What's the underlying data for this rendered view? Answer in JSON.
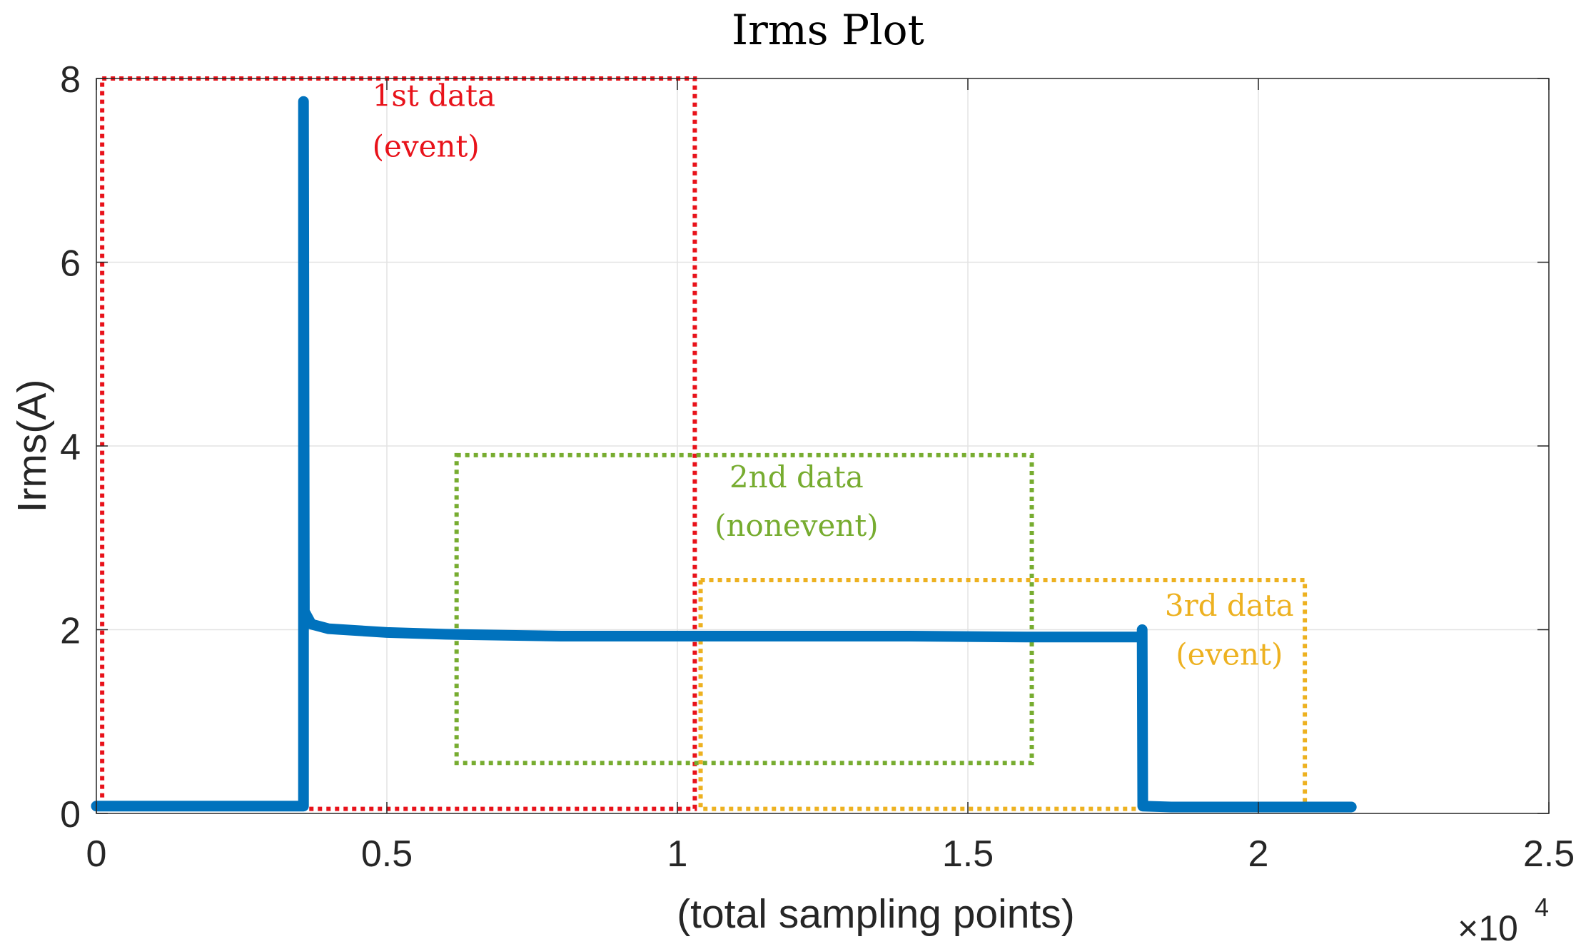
{
  "chart_data": {
    "type": "line",
    "title": "Irms Plot",
    "xlabel": "(total sampling points)",
    "ylabel": "Irms(A)",
    "x_multiplier": "×10",
    "x_multiplier_exponent": "4",
    "xlim": [
      0,
      2.5
    ],
    "ylim": [
      0,
      8
    ],
    "xticks": [
      0,
      0.5,
      1,
      1.5,
      2,
      2.5
    ],
    "yticks": [
      0,
      2,
      4,
      6,
      8
    ],
    "xtick_labels": [
      "0",
      "0.5",
      "1",
      "1.5",
      "2",
      "2.5"
    ],
    "ytick_labels": [
      "0",
      "2",
      "4",
      "6",
      "8"
    ],
    "grid": true,
    "series": [
      {
        "name": "Irms",
        "color": "#0072BD",
        "x": [
          0,
          0.355,
          0.3565,
          0.3565,
          0.358,
          0.37,
          0.4,
          0.5,
          0.6,
          0.8,
          1.0,
          1.2,
          1.4,
          1.6,
          1.8,
          1.8,
          1.801,
          1.85,
          2.0,
          2.16
        ],
        "y": [
          0.08,
          0.08,
          0.08,
          7.75,
          2.2,
          2.06,
          2.01,
          1.97,
          1.95,
          1.93,
          1.93,
          1.93,
          1.93,
          1.92,
          1.92,
          2.0,
          0.08,
          0.07,
          0.07,
          0.07
        ]
      }
    ],
    "regions": [
      {
        "label_line1": "1st data",
        "label_line2": "(event)",
        "color": "#E8121A",
        "x0": 0.01,
        "x1": 1.03,
        "y0": 0.05,
        "y1": 8.0,
        "label_x": 0.475,
        "label_y1": 7.7,
        "label_y2": 7.15,
        "label_anchor": "start"
      },
      {
        "label_line1": "2nd data",
        "label_line2": "(nonevent)",
        "color": "#77AC30",
        "x0": 0.62,
        "x1": 1.61,
        "y0": 0.55,
        "y1": 3.9,
        "label_x": 1.205,
        "label_y1": 3.55,
        "label_y2": 3.02,
        "label_anchor": "middle"
      },
      {
        "label_line1": "3rd data",
        "label_line2": "(event)",
        "color": "#EDB120",
        "x0": 1.04,
        "x1": 2.08,
        "y0": 0.05,
        "y1": 2.54,
        "label_x": 1.95,
        "label_y1": 2.15,
        "label_y2": 1.62,
        "label_anchor": "middle"
      }
    ]
  }
}
